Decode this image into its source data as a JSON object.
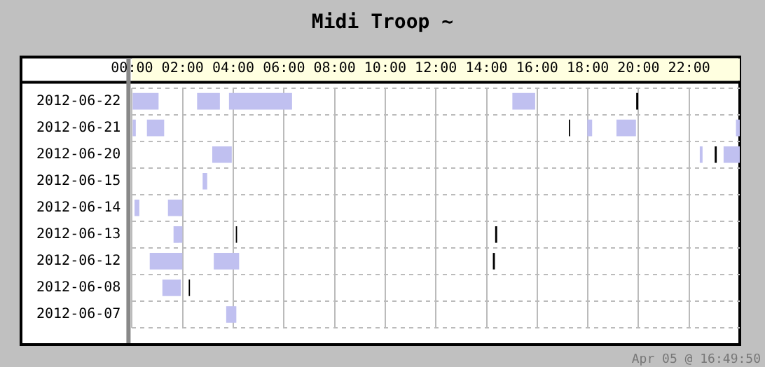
{
  "chart_data": {
    "type": "bar",
    "orientation": "horizontal",
    "title": "Midi Troop ~",
    "categories": [
      "2012-06-22",
      "2012-06-21",
      "2012-06-20",
      "2012-06-15",
      "2012-06-14",
      "2012-06-13",
      "2012-06-12",
      "2012-06-08",
      "2012-06-07"
    ],
    "series": [
      {
        "color": "#c0c0f0",
        "base": [
          0,
          0,
          3.17,
          2.79,
          0.1,
          1.64,
          0.7,
          1.2,
          3.72
        ],
        "values": [
          1.05,
          0.15,
          0.77,
          0.18,
          0.19,
          0.35,
          1.29,
          0.73,
          0.4
        ]
      },
      {
        "color": "#c0c0f0",
        "base": [
          2.57,
          0.59,
          22.42,
          null,
          1.42,
          null,
          3.23,
          null,
          null
        ],
        "values": [
          0.9,
          0.68,
          0.11,
          null,
          0.57,
          null,
          1,
          null,
          null
        ]
      },
      {
        "color": "#c0c0f0",
        "base": [
          3.83,
          17.98,
          23.36,
          null,
          null,
          null,
          null,
          null,
          null
        ],
        "values": [
          2.49,
          0.19,
          0.64,
          null,
          null,
          null,
          null,
          null,
          null
        ]
      },
      {
        "color": "#c0c0f0",
        "base": [
          15.02,
          19.13,
          null,
          null,
          null,
          null,
          null,
          null,
          null
        ],
        "values": [
          0.9,
          0.77,
          null,
          null,
          null,
          null,
          null,
          null,
          null
        ]
      },
      {
        "color": "#c0c0f0",
        "base": [
          null,
          23.85,
          null,
          null,
          null,
          null,
          null,
          null,
          null
        ],
        "values": [
          null,
          0.15,
          null,
          null,
          null,
          null,
          null,
          null,
          null
        ]
      },
      {
        "color": "#000000",
        "base": [
          19.91,
          17.25,
          23.01,
          null,
          null,
          4.1,
          14.25,
          2.24,
          null
        ],
        "values": [
          0.08,
          0.05,
          0.08,
          null,
          null,
          0.05,
          0.08,
          0.05,
          null
        ]
      },
      {
        "color": "#000000",
        "base": [
          null,
          null,
          null,
          null,
          null,
          14.34,
          null,
          null,
          null
        ],
        "values": [
          null,
          null,
          null,
          null,
          null,
          0.08,
          null,
          null,
          null
        ]
      }
    ],
    "xlim": [
      0,
      24
    ],
    "xticks": [
      {
        "value": 0,
        "label": "00:00"
      },
      {
        "value": 2,
        "label": "02:00"
      },
      {
        "value": 4,
        "label": "04:00"
      },
      {
        "value": 6,
        "label": "06:00"
      },
      {
        "value": 8,
        "label": "08:00"
      },
      {
        "value": 10,
        "label": "10:00"
      },
      {
        "value": 12,
        "label": "12:00"
      },
      {
        "value": 14,
        "label": "14:00"
      },
      {
        "value": 16,
        "label": "16:00"
      },
      {
        "value": 18,
        "label": "18:00"
      },
      {
        "value": 20,
        "label": "20:00"
      },
      {
        "value": 22,
        "label": "22:00"
      }
    ],
    "grid": true,
    "legend": false,
    "annotations": [
      "Apr 05 @ 16:49:50"
    ]
  }
}
